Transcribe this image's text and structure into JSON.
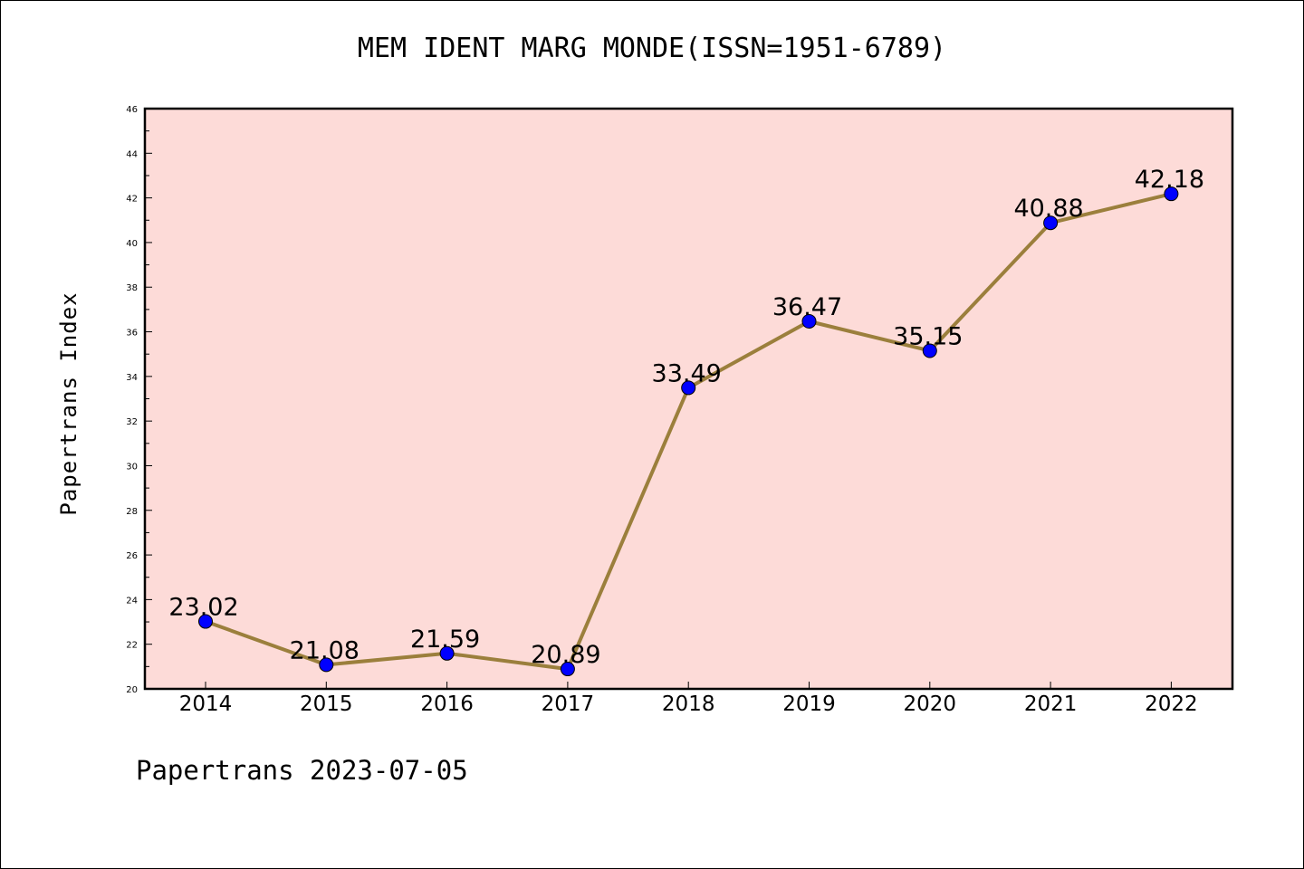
{
  "header": {
    "title": "MEM IDENT MARG MONDE(ISSN=1951-6789)"
  },
  "footer": {
    "note": "Papertrans 2023-07-05"
  },
  "colors": {
    "plot_background": "#fddbd8",
    "line": "#9b7f3c",
    "marker": "#0000ff",
    "axis": "#000000"
  },
  "chart_data": {
    "type": "line",
    "title": "MEM IDENT MARG MONDE(ISSN=1951-6789)",
    "xlabel": "",
    "ylabel": "Papertrans Index",
    "categories": [
      "2014",
      "2015",
      "2016",
      "2017",
      "2018",
      "2019",
      "2020",
      "2021",
      "2022"
    ],
    "series": [
      {
        "values": [
          23.02,
          21.08,
          21.59,
          20.89,
          33.49,
          36.47,
          35.15,
          40.88,
          42.18
        ],
        "labels": [
          "23.02",
          "21.08",
          "21.59",
          "20.89",
          "33.49",
          "36.47",
          "35.15",
          "40.88",
          "42.18"
        ]
      }
    ],
    "ylim": [
      20,
      46
    ],
    "yticks": [
      "20",
      "22",
      "24",
      "26",
      "28",
      "30",
      "32",
      "34",
      "36",
      "38",
      "40",
      "42",
      "44",
      "46"
    ],
    "grid": false,
    "legend": "none"
  }
}
